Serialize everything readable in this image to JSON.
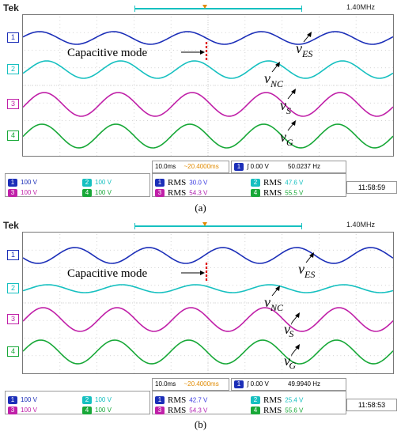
{
  "colors": {
    "ch1": "#1c2fb8",
    "ch2": "#16c0c0",
    "ch3": "#c020a8",
    "ch4": "#18a838",
    "cursor": "#e01010",
    "trigger": "#e08a00",
    "rms_label_1": "#3a3ae0",
    "rms_label_3": "#b020b0"
  },
  "panel_a": {
    "brand": "Tek",
    "frequency_top": "1.40MHz",
    "channel_markers": [
      "1",
      "2",
      "3",
      "4"
    ],
    "annotation": "Capacitive mode",
    "signal_labels": [
      "v",
      "v",
      "v",
      "v"
    ],
    "signal_subs": [
      "ES",
      "NC",
      "S",
      "G"
    ],
    "timebase": "10.0ms",
    "delay": "~20.4000ms",
    "trigger": "0.00 V",
    "trigger_freq": "50.0237 Hz",
    "channel_scales": [
      {
        "n": "1",
        "v": "100 V"
      },
      {
        "n": "2",
        "v": "100 V"
      },
      {
        "n": "3",
        "v": "100 V"
      },
      {
        "n": "4",
        "v": "100 V"
      }
    ],
    "rms": [
      {
        "n": "1",
        "label": "RMS",
        "v": "30.0 V"
      },
      {
        "n": "2",
        "label": "RMS",
        "v": "47.6 V"
      },
      {
        "n": "3",
        "label": "RMS",
        "v": "54.3 V"
      },
      {
        "n": "4",
        "label": "RMS",
        "v": "55.5 V"
      }
    ],
    "clock": "11:58:59",
    "caption": "(a)"
  },
  "panel_b": {
    "brand": "Tek",
    "frequency_top": "1.40MHz",
    "channel_markers": [
      "1",
      "2",
      "3",
      "4"
    ],
    "annotation": "Capacitive mode",
    "signal_labels": [
      "v",
      "v",
      "v",
      "v"
    ],
    "signal_subs": [
      "ES",
      "NC",
      "S",
      "G"
    ],
    "signal_primes": [
      "",
      "",
      "'",
      "'"
    ],
    "timebase": "10.0ms",
    "delay": "~20.4000ms",
    "trigger": "0.00 V",
    "trigger_freq": "49.9940 Hz",
    "channel_scales": [
      {
        "n": "1",
        "v": "100 V"
      },
      {
        "n": "2",
        "v": "100 V"
      },
      {
        "n": "3",
        "v": "100 V"
      },
      {
        "n": "4",
        "v": "100 V"
      }
    ],
    "rms": [
      {
        "n": "1",
        "label": "RMS",
        "v": "42.7 V"
      },
      {
        "n": "2",
        "label": "RMS",
        "v": "25.4 V"
      },
      {
        "n": "3",
        "label": "RMS",
        "v": "54.3 V"
      },
      {
        "n": "4",
        "label": "RMS",
        "v": "55.6 V"
      }
    ],
    "clock": "11:58:53",
    "caption": "(b)"
  }
}
